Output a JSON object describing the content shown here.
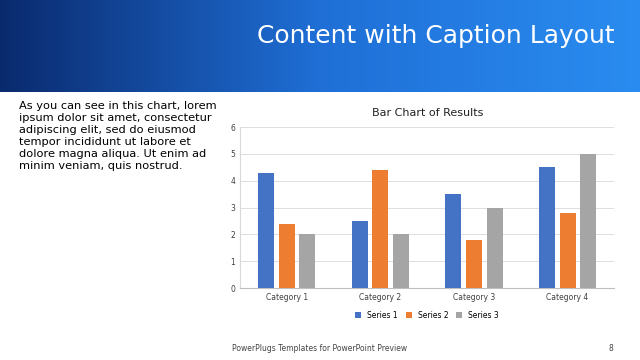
{
  "slide": {
    "title": "Content with Caption Layout",
    "caption": "As you can see in this chart, lorem ipsum dolor sit amet, consectetur adipiscing elit, sed do eiusmod tempor incididunt ut labore et dolore magna aliqua. Ut enim ad minim veniam, quis nostrud.",
    "footer": "PowerPlugs Templates for PowerPoint Preview",
    "page": 8
  },
  "chart_data": {
    "type": "bar",
    "title": "Bar Chart of Results",
    "categories": [
      "Category 1",
      "Category 2",
      "Category 3",
      "Category 4"
    ],
    "series": [
      {
        "name": "Series 1",
        "color": "#4472c4",
        "values": [
          4.3,
          2.5,
          3.5,
          4.5
        ]
      },
      {
        "name": "Series 2",
        "color": "#ed7d31",
        "values": [
          2.4,
          4.4,
          1.8,
          2.8
        ]
      },
      {
        "name": "Series 3",
        "color": "#a5a5a5",
        "values": [
          2,
          2,
          3,
          5
        ]
      }
    ],
    "ylim": [
      0,
      6
    ],
    "yticks": [
      0,
      1,
      2,
      3,
      4,
      5,
      6
    ],
    "grid": true,
    "legend": "lower center"
  }
}
